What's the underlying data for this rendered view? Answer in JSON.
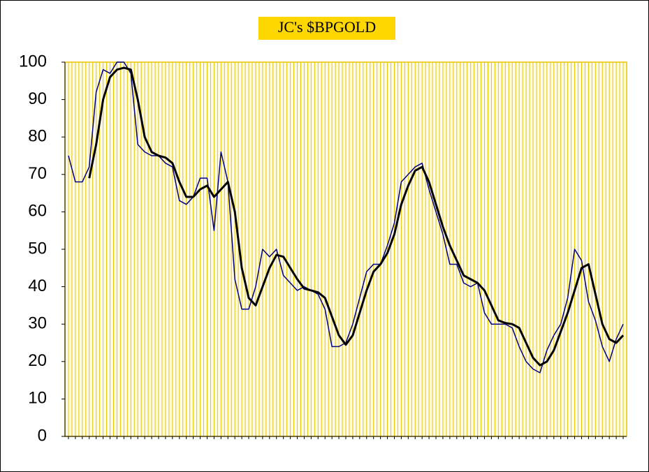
{
  "chart_data": {
    "type": "line",
    "title": "JC's $BPGOLD",
    "categories": [
      null,
      null,
      null,
      null,
      null,
      null,
      null,
      null,
      null,
      null,
      null,
      null,
      null,
      null,
      null,
      null,
      null,
      null,
      null,
      null,
      null,
      null,
      null,
      null,
      null,
      null,
      null,
      null,
      null,
      null,
      null,
      null,
      null,
      null,
      null,
      null,
      null,
      null,
      null,
      null,
      null,
      null,
      null,
      null,
      null,
      null,
      null,
      null,
      null,
      null,
      null,
      null,
      null,
      null,
      null,
      null,
      null,
      null,
      null,
      null,
      null,
      null,
      null,
      null,
      null,
      null,
      null,
      null,
      null,
      null,
      null,
      null,
      null,
      null,
      null,
      null,
      null,
      null,
      null,
      null,
      null
    ],
    "series": [
      {
        "name": null,
        "color": "#000080",
        "width": 1.5,
        "values": [
          75,
          68,
          68,
          72,
          92,
          98,
          97,
          100,
          100,
          97,
          78,
          76,
          75,
          75,
          73,
          72,
          63,
          62,
          64,
          69,
          69,
          55,
          76,
          68,
          42,
          34,
          34,
          40,
          50,
          48,
          50,
          43,
          41,
          39,
          40,
          39,
          38,
          34,
          24,
          24,
          25,
          30,
          37,
          44,
          46,
          46,
          51,
          57,
          68,
          70,
          72,
          73,
          66,
          60,
          54,
          46,
          46,
          41,
          40,
          41,
          33,
          30,
          30,
          30,
          29,
          24,
          20,
          18,
          17,
          23,
          27,
          30,
          37,
          50,
          47,
          36,
          31,
          24,
          20,
          26,
          30
        ]
      },
      {
        "name": null,
        "color": "#000000",
        "width": 3,
        "values": [
          null,
          null,
          null,
          69,
          78,
          90,
          96,
          98,
          98.5,
          98,
          90,
          80,
          76,
          75,
          74.5,
          73,
          68,
          64,
          64,
          66,
          67,
          64,
          66,
          68,
          60,
          45,
          37,
          35,
          40,
          45,
          48.5,
          48,
          45,
          42,
          39.5,
          39,
          38.5,
          37,
          32,
          27,
          24.5,
          27,
          33,
          39,
          44,
          46,
          49,
          54,
          62,
          67,
          71,
          72,
          68,
          62,
          56,
          51,
          47,
          43,
          42,
          41,
          39,
          35,
          31,
          30.3,
          30,
          29,
          25,
          21,
          19,
          20,
          23,
          28,
          33,
          39,
          45,
          46,
          38,
          30,
          26,
          25,
          27
        ]
      }
    ],
    "ylim": [
      0,
      100
    ],
    "yticks": [
      0,
      10,
      20,
      30,
      40,
      50,
      60,
      70,
      80,
      90,
      100
    ],
    "grid": true,
    "background": "#fffbe6",
    "grid_color": "#e8c400",
    "title_background": "#ffd700"
  }
}
